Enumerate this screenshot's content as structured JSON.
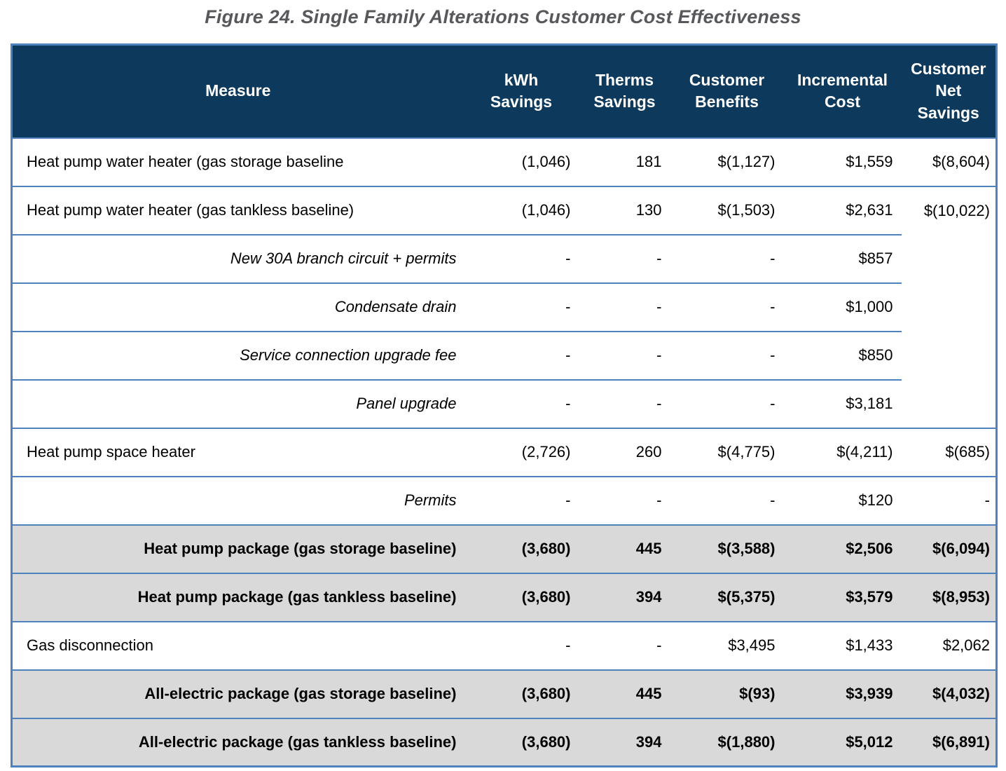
{
  "figure_title": "Figure 24. Single Family Alterations Customer Cost Effectiveness",
  "colors": {
    "header_bg": "#0d3a5c",
    "row_border": "#4f81bd",
    "summary_row_bg": "#d9d9d9",
    "title_color": "#57585b",
    "header_text": "#ffffff"
  },
  "table": {
    "columns": [
      {
        "key": "measure",
        "label": "Measure"
      },
      {
        "key": "kwh",
        "label": "kWh\nSavings"
      },
      {
        "key": "therms",
        "label": "Therms\nSavings"
      },
      {
        "key": "benefits",
        "label": "Customer\nBenefits"
      },
      {
        "key": "cost",
        "label": "Incremental\nCost"
      },
      {
        "key": "net",
        "label": "Customer\nNet\nSavings"
      }
    ],
    "rows": [
      {
        "style": "main",
        "measure": "Heat pump water heater (gas storage baseline",
        "kwh": "(1,046)",
        "therms": "181",
        "benefits": "$(1,127)",
        "cost": "$1,559",
        "net": "$(8,604)",
        "net_merged": false
      },
      {
        "style": "main",
        "measure": "Heat pump water heater (gas tankless baseline)",
        "kwh": "(1,046)",
        "therms": "130",
        "benefits": "$(1,503)",
        "cost": "$2,631",
        "net": "$(10,022)",
        "net_merged": false
      },
      {
        "style": "sub",
        "measure": "New 30A branch circuit + permits",
        "kwh": "-",
        "therms": "-",
        "benefits": "-",
        "cost": "$857",
        "net": "",
        "net_merged": true
      },
      {
        "style": "sub",
        "measure": "Condensate drain",
        "kwh": "-",
        "therms": "-",
        "benefits": "-",
        "cost": "$1,000",
        "net": "",
        "net_merged": true
      },
      {
        "style": "sub",
        "measure": "Service connection upgrade fee",
        "kwh": "-",
        "therms": "-",
        "benefits": "-",
        "cost": "$850",
        "net": "",
        "net_merged": true
      },
      {
        "style": "sub",
        "measure": "Panel upgrade",
        "kwh": "-",
        "therms": "-",
        "benefits": "-",
        "cost": "$3,181",
        "net": "",
        "net_merged": true
      },
      {
        "style": "main",
        "measure": "Heat pump space heater",
        "kwh": "(2,726)",
        "therms": "260",
        "benefits": "$(4,775)",
        "cost": "$(4,211)",
        "net": "$(685)",
        "net_merged": false
      },
      {
        "style": "sub",
        "measure": "Permits",
        "kwh": "-",
        "therms": "-",
        "benefits": "-",
        "cost": "$120",
        "net": "-",
        "net_merged": false
      },
      {
        "style": "total",
        "measure": "Heat pump package (gas storage baseline)",
        "kwh": "(3,680)",
        "therms": "445",
        "benefits": "$(3,588)",
        "cost": "$2,506",
        "net": "$(6,094)",
        "net_merged": false
      },
      {
        "style": "total",
        "measure": "Heat pump package (gas tankless baseline)",
        "kwh": "(3,680)",
        "therms": "394",
        "benefits": "$(5,375)",
        "cost": "$3,579",
        "net": "$(8,953)",
        "net_merged": false
      },
      {
        "style": "main",
        "measure": "Gas disconnection",
        "kwh": "-",
        "therms": "-",
        "benefits": "$3,495",
        "cost": "$1,433",
        "net": "$2,062",
        "net_merged": false
      },
      {
        "style": "total",
        "measure": "All-electric package (gas storage baseline)",
        "kwh": "(3,680)",
        "therms": "445",
        "benefits": "$(93)",
        "cost": "$3,939",
        "net": "$(4,032)",
        "net_merged": false
      },
      {
        "style": "total",
        "measure": "All-electric package (gas tankless baseline)",
        "kwh": "(3,680)",
        "therms": "394",
        "benefits": "$(1,880)",
        "cost": "$5,012",
        "net": "$(6,891)",
        "net_merged": false
      }
    ]
  }
}
